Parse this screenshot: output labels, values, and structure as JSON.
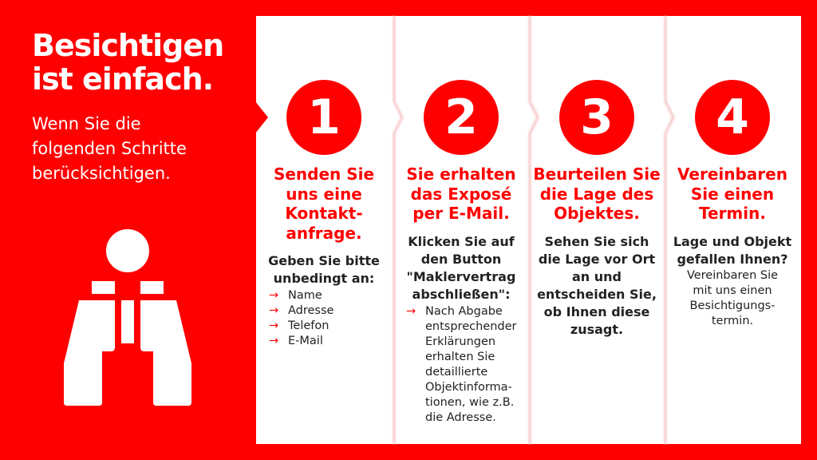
{
  "intro": {
    "title_lines": [
      "Besichtigen",
      "ist einfach."
    ],
    "subtitle_lines": [
      "Wenn Sie die",
      "folgenden Schritte",
      "berücksichtigen."
    ],
    "icon": "binoculars-icon"
  },
  "colors": {
    "accent": "#ff0000",
    "panel": "#ffffff",
    "text": "#222222"
  },
  "steps": [
    {
      "number": "1",
      "heading_lines": [
        "Senden Sie",
        "uns eine",
        "Kontakt-",
        "anfrage."
      ],
      "bold_lines": [
        "Geben Sie bitte",
        "unbedingt an:"
      ],
      "list": [
        [
          "Name"
        ],
        [
          "Adresse"
        ],
        [
          "Telefon"
        ],
        [
          "E-Mail"
        ]
      ],
      "normal_lines": []
    },
    {
      "number": "2",
      "heading_lines": [
        "Sie erhalten",
        "das Exposé",
        "per E-Mail."
      ],
      "bold_lines": [
        "Klicken Sie auf",
        "den Button",
        "\"Maklervertrag",
        "abschließen\":"
      ],
      "list": [
        [
          "Nach Abgabe",
          "entsprechender",
          "Erklärungen",
          "erhalten Sie",
          "detaillierte",
          "Objektinforma-",
          "tionen, wie z.B.",
          "die Adresse."
        ]
      ],
      "normal_lines": []
    },
    {
      "number": "3",
      "heading_lines": [
        "Beurteilen Sie",
        "die Lage des",
        "Objektes."
      ],
      "bold_lines": [
        "Sehen Sie sich",
        "die Lage vor Ort",
        "an und",
        "entscheiden Sie,",
        "ob Ihnen diese",
        "zusagt."
      ],
      "list": [],
      "normal_lines": []
    },
    {
      "number": "4",
      "heading_lines": [
        "Vereinbaren",
        "Sie einen",
        "Termin."
      ],
      "bold_lines": [
        "Lage und Objekt",
        "gefallen Ihnen?"
      ],
      "list": [],
      "normal_lines": [
        "Vereinbaren Sie",
        "mit uns einen",
        "Besichtigungs-",
        "termin."
      ]
    }
  ],
  "list_arrow": "→"
}
